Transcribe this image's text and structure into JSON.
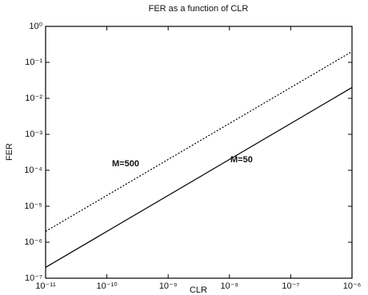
{
  "chart_data": {
    "type": "line",
    "title": "FER as a function of CLR",
    "x_label": "CLR",
    "y_label": "FER",
    "xscale": "log",
    "yscale": "log",
    "x": [
      1e-11,
      1e-06
    ],
    "series": [
      {
        "name": "M=50",
        "color": "#000000",
        "style": "solid",
        "values": [
          2e-07,
          0.02
        ]
      },
      {
        "name": "M=500",
        "color": "#000000",
        "style": "dotted",
        "values": [
          2e-06,
          0.2
        ]
      }
    ],
    "xlim": [
      1e-11,
      1e-06
    ],
    "ylim": [
      1e-07,
      1
    ],
    "xticks": [
      {
        "value": 1e-11,
        "label": "10⁻¹¹"
      },
      {
        "value": 1e-10,
        "label": "10⁻¹⁰"
      },
      {
        "value": 1e-09,
        "label": "10⁻⁹"
      },
      {
        "value": 1e-08,
        "label": "10⁻⁸"
      },
      {
        "value": 1e-07,
        "label": "10⁻⁷"
      },
      {
        "value": 1e-06,
        "label": "10⁻⁶"
      }
    ],
    "yticks": [
      {
        "value": 1e-07,
        "label": "10⁻⁷"
      },
      {
        "value": 1e-06,
        "label": "10⁻⁶"
      },
      {
        "value": 1e-05,
        "label": "10⁻⁵"
      },
      {
        "value": 0.0001,
        "label": "10⁻⁴"
      },
      {
        "value": 0.001,
        "label": "10⁻³"
      },
      {
        "value": 0.01,
        "label": "10⁻²"
      },
      {
        "value": 0.1,
        "label": "10⁻¹"
      },
      {
        "value": 1,
        "label": "10⁰"
      }
    ]
  }
}
